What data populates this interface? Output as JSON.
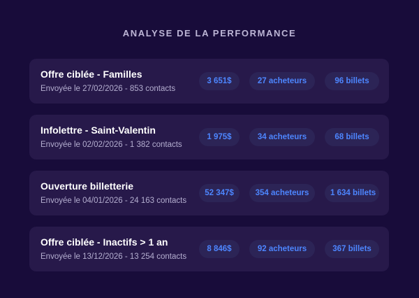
{
  "title": "ANALYSE DE LA PERFORMANCE",
  "campaigns": [
    {
      "name": "Offre ciblée - Familles",
      "meta": "Envoyée le 27/02/2026 - 853 contacts",
      "revenue": "3 651$",
      "buyers": "27 acheteurs",
      "tickets": "96 billets"
    },
    {
      "name": "Infolettre - Saint-Valentin",
      "meta": "Envoyée le 02/02/2026 - 1 382 contacts",
      "revenue": "1 975$",
      "buyers": "34 acheteurs",
      "tickets": "68 billets"
    },
    {
      "name": "Ouverture billetterie",
      "meta": "Envoyée le 04/01/2026 - 24 163 contacts",
      "revenue": "52 347$",
      "buyers": "354 acheteurs",
      "tickets": "1 634 billets"
    },
    {
      "name": "Offre ciblée - Inactifs > 1 an",
      "meta": "Envoyée le 13/12/2026 - 13 254 contacts",
      "revenue": "8 846$",
      "buyers": "92 acheteurs",
      "tickets": "367 billets"
    }
  ],
  "colors": {
    "background": "#180c3a",
    "card": "#27194a",
    "pill": "#2c2456",
    "accent": "#4d86ff"
  }
}
